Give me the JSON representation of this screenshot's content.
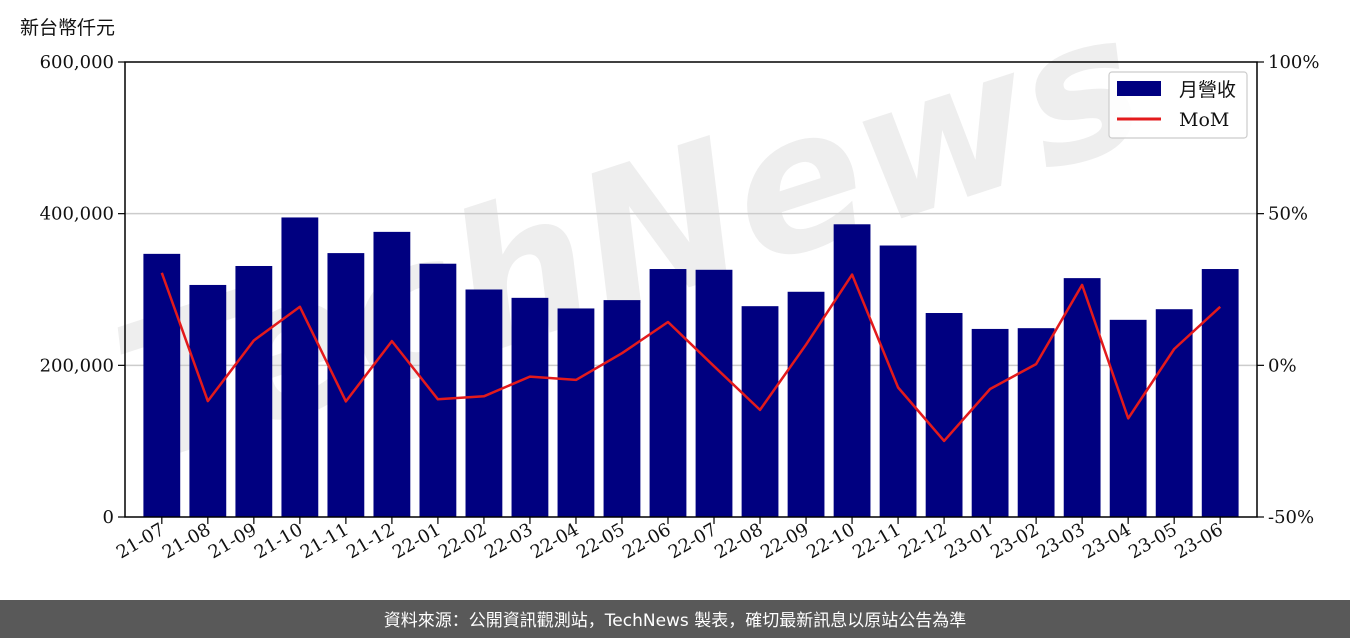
{
  "footer": {
    "text": "資料來源：公開資訊觀測站，TechNews 製表，確切最新訊息以原站公告為準"
  },
  "watermark": {
    "text": "TechNews"
  },
  "colors": {
    "bar": "#000080",
    "line": "#e31a1c",
    "grid": "#cccccc",
    "footer_bg": "#595959"
  },
  "chart_data": {
    "type": "bar",
    "unit_label": "新台幣仟元",
    "categories": [
      "21-07",
      "21-08",
      "21-09",
      "21-10",
      "21-11",
      "21-12",
      "22-01",
      "22-02",
      "22-03",
      "22-04",
      "22-05",
      "22-06",
      "22-07",
      "22-08",
      "22-09",
      "22-10",
      "22-11",
      "22-12",
      "23-01",
      "23-02",
      "23-03",
      "23-04",
      "23-05",
      "23-06"
    ],
    "series": [
      {
        "name": "月營收",
        "axis": "left",
        "type": "bar",
        "values": [
          347000,
          306000,
          331000,
          395000,
          348000,
          376000,
          334000,
          300000,
          289000,
          275000,
          286000,
          327000,
          326000,
          278000,
          297000,
          386000,
          358000,
          269000,
          248000,
          249000,
          315000,
          260000,
          274000,
          327000
        ]
      },
      {
        "name": "MoM",
        "axis": "right",
        "type": "line",
        "values": [
          30.5,
          -11.8,
          8.2,
          19.3,
          -11.9,
          8.0,
          -11.2,
          -10.2,
          -3.7,
          -4.8,
          4.0,
          14.3,
          -0.3,
          -14.7,
          6.8,
          29.9,
          -7.3,
          -24.9,
          -7.8,
          0.4,
          26.5,
          -17.5,
          5.4,
          19.3
        ]
      }
    ],
    "ylim_left": [
      0,
      600000
    ],
    "yticks_left": [
      "0",
      "200,000",
      "400,000",
      "600,000"
    ],
    "ylim_right": [
      -50,
      100
    ],
    "yticks_right": [
      "-50%",
      "0%",
      "50%",
      "100%"
    ],
    "grid": true,
    "legend": "top-right"
  }
}
